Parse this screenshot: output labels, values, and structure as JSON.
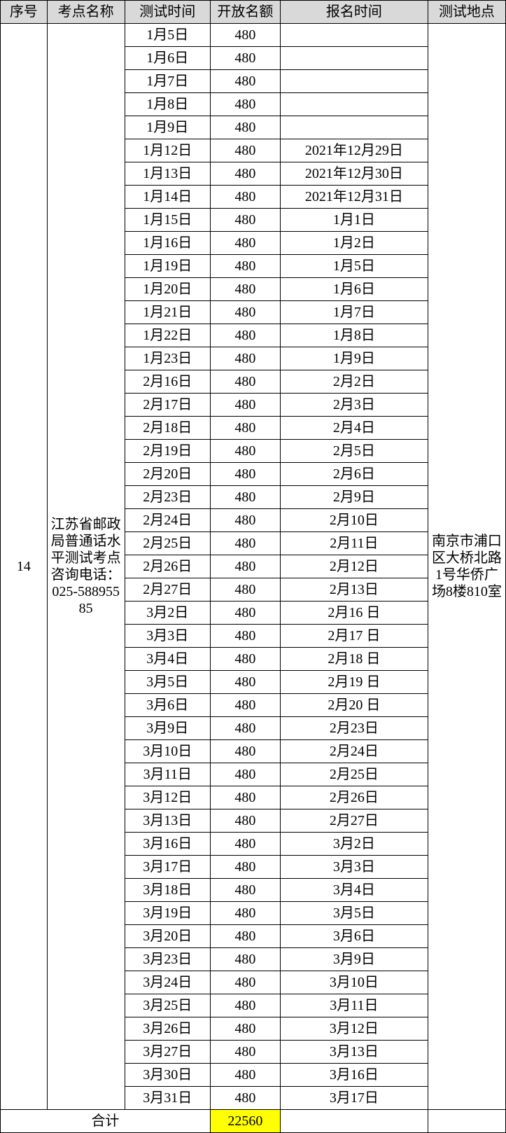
{
  "table": {
    "headers": {
      "seq": "序号",
      "site": "考点名称",
      "test_time": "测试时间",
      "quota": "开放名额",
      "reg_time": "报名时间",
      "location": "测试地点"
    },
    "seq_value": "14",
    "site_value": "江苏省邮政局普通话水平测试考点咨询电话：025-58895585",
    "location_value": "南京市浦口区大桥北路1号华侨广场8楼810室",
    "quota_default": "480",
    "total_label": "合计",
    "total_value": "22560",
    "highlight_color": "#ffff00",
    "header_bg": "#d9d9d9",
    "border_color": "#000000",
    "font_family": "SimSun",
    "font_size_pt": 15,
    "rows": [
      {
        "test": "1月5日",
        "quota": "480",
        "reg": ""
      },
      {
        "test": "1月6日",
        "quota": "480",
        "reg": ""
      },
      {
        "test": "1月7日",
        "quota": "480",
        "reg": ""
      },
      {
        "test": "1月8日",
        "quota": "480",
        "reg": ""
      },
      {
        "test": "1月9日",
        "quota": "480",
        "reg": ""
      },
      {
        "test": "1月12日",
        "quota": "480",
        "reg": "2021年12月29日"
      },
      {
        "test": "1月13日",
        "quota": "480",
        "reg": "2021年12月30日"
      },
      {
        "test": "1月14日",
        "quota": "480",
        "reg": "2021年12月31日"
      },
      {
        "test": "1月15日",
        "quota": "480",
        "reg": "1月1日"
      },
      {
        "test": "1月16日",
        "quota": "480",
        "reg": "1月2日"
      },
      {
        "test": "1月19日",
        "quota": "480",
        "reg": "1月5日"
      },
      {
        "test": "1月20日",
        "quota": "480",
        "reg": "1月6日"
      },
      {
        "test": "1月21日",
        "quota": "480",
        "reg": "1月7日"
      },
      {
        "test": "1月22日",
        "quota": "480",
        "reg": "1月8日"
      },
      {
        "test": "1月23日",
        "quota": "480",
        "reg": "1月9日"
      },
      {
        "test": "2月16日",
        "quota": "480",
        "reg": "2月2日"
      },
      {
        "test": "2月17日",
        "quota": "480",
        "reg": "2月3日"
      },
      {
        "test": "2月18日",
        "quota": "480",
        "reg": "2月4日"
      },
      {
        "test": "2月19日",
        "quota": "480",
        "reg": "2月5日"
      },
      {
        "test": "2月20日",
        "quota": "480",
        "reg": "2月6日"
      },
      {
        "test": "2月23日",
        "quota": "480",
        "reg": "2月9日"
      },
      {
        "test": "2月24日",
        "quota": "480",
        "reg": "2月10日"
      },
      {
        "test": "2月25日",
        "quota": "480",
        "reg": "2月11日"
      },
      {
        "test": "2月26日",
        "quota": "480",
        "reg": "2月12日"
      },
      {
        "test": "2月27日",
        "quota": "480",
        "reg": "2月13日"
      },
      {
        "test": "3月2日",
        "quota": "480",
        "reg": "2月16  日"
      },
      {
        "test": "3月3日",
        "quota": "480",
        "reg": "2月17  日"
      },
      {
        "test": "3月4日",
        "quota": "480",
        "reg": "2月18  日"
      },
      {
        "test": "3月5日",
        "quota": "480",
        "reg": "2月19  日"
      },
      {
        "test": "3月6日",
        "quota": "480",
        "reg": "2月20  日"
      },
      {
        "test": "3月9日",
        "quota": "480",
        "reg": "2月23日"
      },
      {
        "test": "3月10日",
        "quota": "480",
        "reg": "2月24日"
      },
      {
        "test": "3月11日",
        "quota": "480",
        "reg": "2月25日"
      },
      {
        "test": "3月12日",
        "quota": "480",
        "reg": "2月26日"
      },
      {
        "test": "3月13日",
        "quota": "480",
        "reg": "2月27日"
      },
      {
        "test": "3月16日",
        "quota": "480",
        "reg": "3月2日"
      },
      {
        "test": "3月17日",
        "quota": "480",
        "reg": "3月3日"
      },
      {
        "test": "3月18日",
        "quota": "480",
        "reg": "3月4日"
      },
      {
        "test": "3月19日",
        "quota": "480",
        "reg": "3月5日"
      },
      {
        "test": "3月20日",
        "quota": "480",
        "reg": "3月6日"
      },
      {
        "test": "3月23日",
        "quota": "480",
        "reg": "3月9日"
      },
      {
        "test": "3月24日",
        "quota": "480",
        "reg": "3月10日"
      },
      {
        "test": "3月25日",
        "quota": "480",
        "reg": "3月11日"
      },
      {
        "test": "3月26日",
        "quota": "480",
        "reg": "3月12日"
      },
      {
        "test": "3月27日",
        "quota": "480",
        "reg": "3月13日"
      },
      {
        "test": "3月30日",
        "quota": "480",
        "reg": "3月16日"
      },
      {
        "test": "3月31日",
        "quota": "480",
        "reg": "3月17日"
      }
    ]
  }
}
